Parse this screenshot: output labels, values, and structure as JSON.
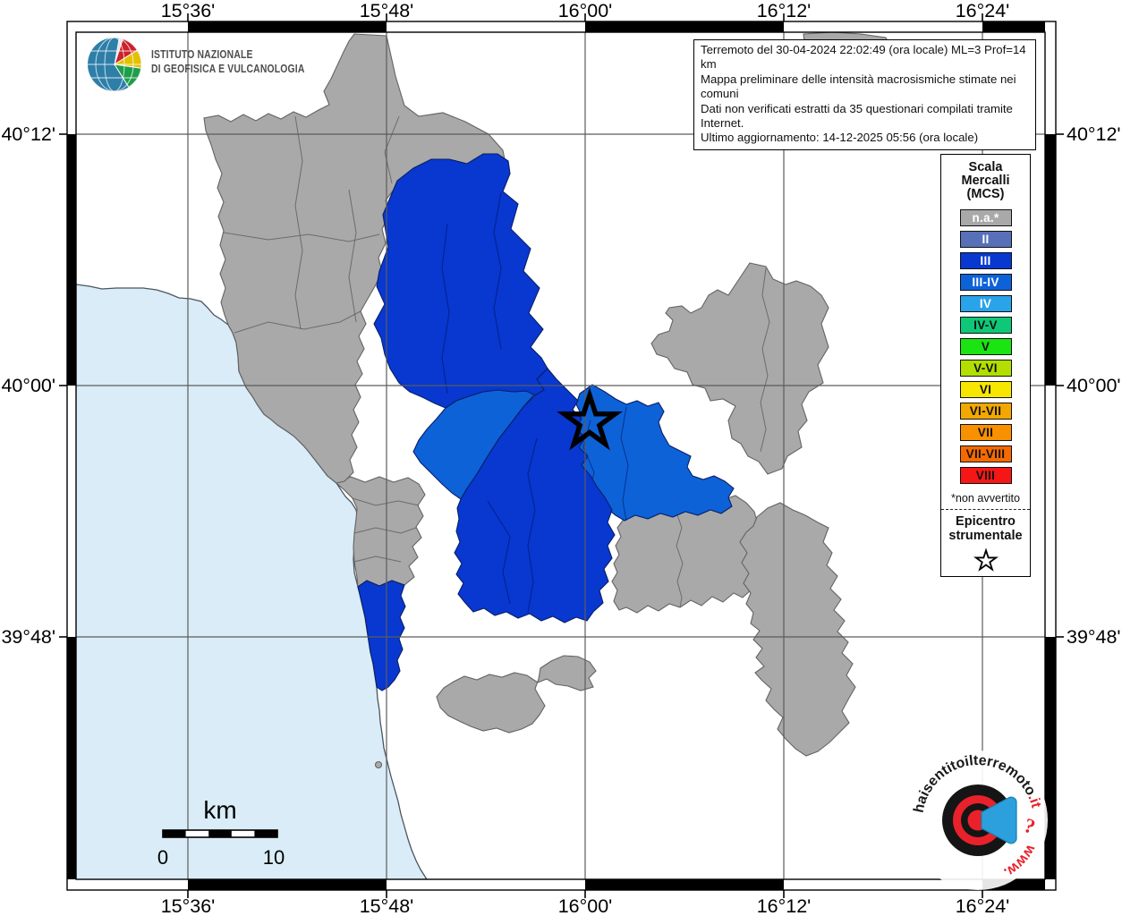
{
  "branding": {
    "line1": "ISTITUTO NAZIONALE",
    "line2": "DI GEOFISICA E VULCANOLOGIA"
  },
  "info_box": {
    "line1": "Terremoto del 30-04-2024 22:02:49 (ora locale) ML=3 Prof=14 km",
    "line2": "Mappa preliminare delle intensità macrosismiche stimate nei comuni",
    "line3": "Dati non verificati estratti da 35 questionari compilati tramite Internet.",
    "line4": "Ultimo aggiornamento: 14-12-2025 05:56 (ora locale)"
  },
  "legend": {
    "title_lines": [
      "Scala",
      "Mercalli",
      "(MCS)"
    ],
    "items": [
      {
        "label": "n.a.*",
        "color": "#a9a9a9",
        "text_color": "#ffffff"
      },
      {
        "label": "II",
        "color": "#5870b8",
        "text_color": "#ffffff"
      },
      {
        "label": "III",
        "color": "#0838cf",
        "text_color": "#ffffff"
      },
      {
        "label": "III-IV",
        "color": "#0d62d8",
        "text_color": "#ffffff"
      },
      {
        "label": "IV",
        "color": "#29a3ea",
        "text_color": "#ffffff"
      },
      {
        "label": "IV-V",
        "color": "#0ec878",
        "text_color": "#111111"
      },
      {
        "label": "V",
        "color": "#1ae412",
        "text_color": "#111111"
      },
      {
        "label": "V-VI",
        "color": "#b2df00",
        "text_color": "#111111"
      },
      {
        "label": "VI",
        "color": "#f7e600",
        "text_color": "#111111"
      },
      {
        "label": "VI-VII",
        "color": "#f2a800",
        "text_color": "#111111"
      },
      {
        "label": "VII",
        "color": "#f89000",
        "text_color": "#111111"
      },
      {
        "label": "VII-VIII",
        "color": "#f56a00",
        "text_color": "#111111"
      },
      {
        "label": "VIII",
        "color": "#f51616",
        "text_color": "#111111"
      }
    ],
    "footnote": "*non avvertito",
    "epicenter_line1": "Epicentro",
    "epicenter_line2": "strumentale"
  },
  "axes": {
    "top": [
      "15°36'",
      "15°48'",
      "16°00'",
      "16°12'",
      "16°24'"
    ],
    "bottom": [
      "15°36'",
      "15°48'",
      "16°00'",
      "16°12'",
      "16°24'"
    ],
    "left": [
      "40°12'",
      "40°00'",
      "39°48'"
    ],
    "right": [
      "40°12'",
      "40°00'",
      "39°48'"
    ]
  },
  "scale_bar": {
    "unit": "km",
    "start_label": "0",
    "end_label": "10"
  },
  "watermark": {
    "ring_text_main": "haisentitoilterremoto",
    "ring_text_suffix": ".it",
    "ring_text_www": "www.",
    "question_mark": "?"
  },
  "map": {
    "colors": {
      "sea": "#d9ecf7",
      "na": "#a9a9a9",
      "iii": "#0838cf",
      "iii_iv": "#0d62d8",
      "grid": "#5c5c5c"
    }
  }
}
